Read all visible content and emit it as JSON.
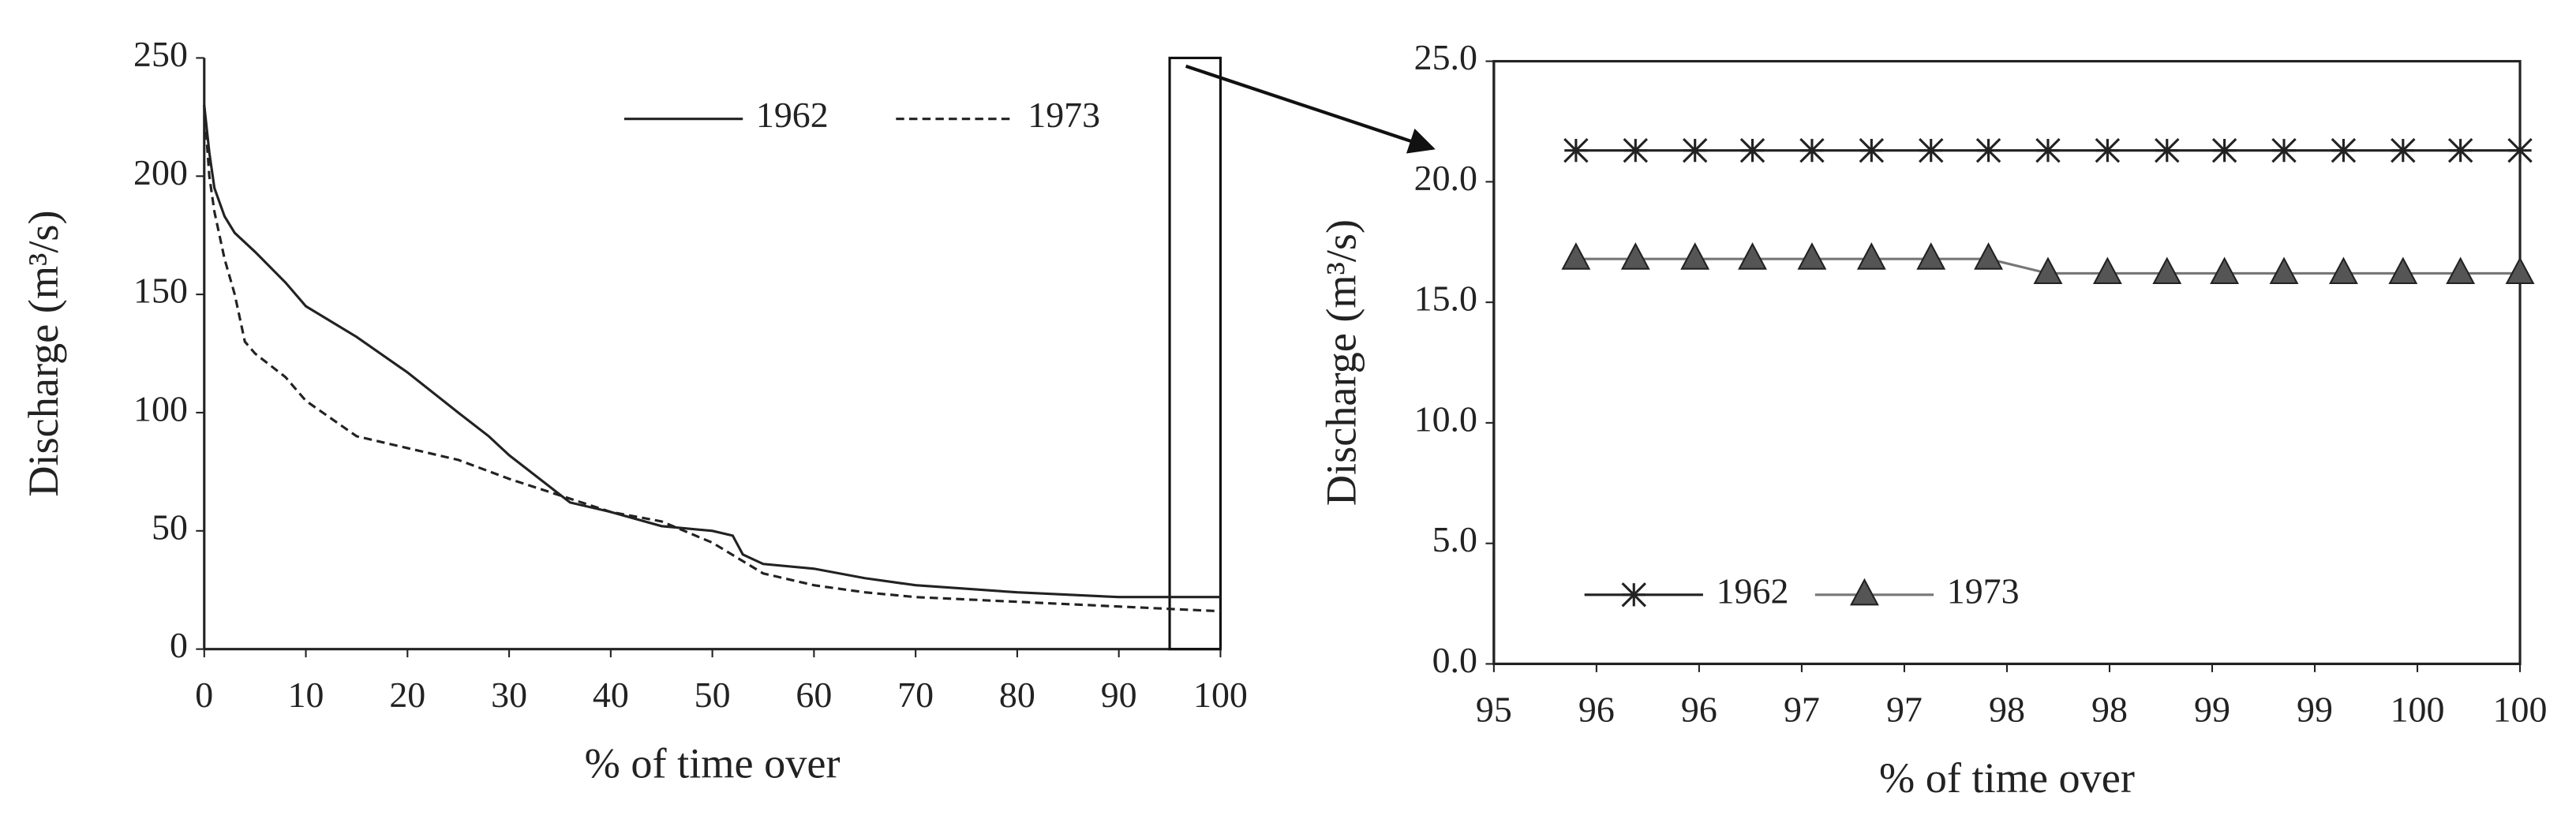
{
  "chart_data": [
    {
      "type": "line",
      "x_label": "% of time over",
      "y_label": "Discharge (m³/s)",
      "xlim": [
        0,
        100
      ],
      "xticks": [
        0,
        10,
        20,
        30,
        40,
        50,
        60,
        70,
        80,
        90,
        100
      ],
      "ylim": [
        0,
        250
      ],
      "yticks": [
        0,
        50,
        100,
        150,
        200,
        250
      ],
      "highlight_xlim": [
        95,
        100
      ],
      "legend": "top-right",
      "series": [
        {
          "name": "1962",
          "color": "#222222",
          "dash": "solid",
          "x": [
            0,
            0.5,
            1,
            2,
            3,
            5,
            8,
            10,
            15,
            20,
            25,
            28,
            30,
            33,
            36,
            40,
            45,
            50,
            52,
            53,
            55,
            60,
            65,
            70,
            80,
            90,
            100
          ],
          "values": [
            230,
            210,
            195,
            183,
            176,
            168,
            155,
            145,
            132,
            117,
            100,
            90,
            82,
            72,
            62,
            58,
            52,
            50,
            48,
            40,
            36,
            34,
            30,
            27,
            24,
            22,
            22
          ]
        },
        {
          "name": "1973",
          "color": "#222222",
          "dash": "dashed",
          "x": [
            0,
            0.5,
            1,
            2,
            3,
            4,
            5,
            8,
            10,
            15,
            20,
            25,
            30,
            35,
            40,
            45,
            50,
            55,
            60,
            65,
            70,
            80,
            90,
            100
          ],
          "values": [
            230,
            200,
            185,
            165,
            150,
            130,
            125,
            115,
            105,
            90,
            85,
            80,
            72,
            65,
            58,
            54,
            45,
            32,
            27,
            24,
            22,
            20,
            18,
            16
          ]
        }
      ]
    },
    {
      "type": "line",
      "x_label": "% of time over",
      "y_label": "Discharge (m³/s)",
      "xlim": [
        95,
        100
      ],
      "xticks": [
        95,
        {
          "value": 95.5,
          "label": "96"
        },
        96,
        {
          "value": 96.5,
          "label": "97"
        },
        97,
        {
          "value": 97.5,
          "label": "98"
        },
        98,
        {
          "value": 98.5,
          "label": "99"
        },
        99,
        {
          "value": 99.5,
          "label": "100"
        },
        100
      ],
      "ylim": [
        0,
        25
      ],
      "yticks": [
        {
          "value": 0,
          "label": "0.0"
        },
        {
          "value": 5,
          "label": "5.0"
        },
        {
          "value": 10,
          "label": "10.0"
        },
        {
          "value": 15,
          "label": "15.0"
        },
        {
          "value": 20,
          "label": "20.0"
        },
        {
          "value": 25,
          "label": "25.0"
        }
      ],
      "legend": "bottom-left",
      "series": [
        {
          "name": "1962",
          "color": "#222222",
          "marker": "star",
          "x": [
            95.4,
            95.69,
            95.98,
            96.26,
            96.55,
            96.84,
            97.13,
            97.41,
            97.7,
            97.99,
            98.28,
            98.56,
            98.85,
            99.14,
            99.43,
            99.71,
            100
          ],
          "values": [
            21.3,
            21.3,
            21.3,
            21.3,
            21.3,
            21.3,
            21.3,
            21.3,
            21.3,
            21.3,
            21.3,
            21.3,
            21.3,
            21.3,
            21.3,
            21.3,
            21.3
          ]
        },
        {
          "name": "1973",
          "color": "#555555",
          "marker": "triangle",
          "x": [
            95.4,
            95.69,
            95.98,
            96.26,
            96.55,
            96.84,
            97.13,
            97.41,
            97.7,
            97.99,
            98.28,
            98.56,
            98.85,
            99.14,
            99.43,
            99.71,
            100
          ],
          "values": [
            16.8,
            16.8,
            16.8,
            16.8,
            16.8,
            16.8,
            16.8,
            16.8,
            16.2,
            16.2,
            16.2,
            16.2,
            16.2,
            16.2,
            16.2,
            16.2,
            16.2
          ]
        }
      ]
    }
  ]
}
